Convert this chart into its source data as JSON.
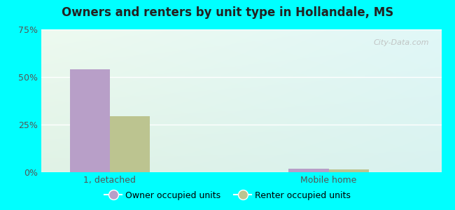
{
  "title": "Owners and renters by unit type in Hollandale, MS",
  "categories": [
    "1, detached",
    "Mobile home"
  ],
  "owner_values": [
    54.0,
    2.0
  ],
  "renter_values": [
    29.5,
    1.5
  ],
  "owner_color": "#b89fc8",
  "renter_color": "#bcc490",
  "ylim": [
    0,
    75
  ],
  "yticks": [
    0,
    25,
    50,
    75
  ],
  "ytick_labels": [
    "0%",
    "25%",
    "50%",
    "75%"
  ],
  "legend_owner": "Owner occupied units",
  "legend_renter": "Renter occupied units",
  "bar_width": 0.32,
  "outer_bg": "#00ffff",
  "watermark": "City-Data.com",
  "group_centers": [
    0.55,
    2.3
  ],
  "xlim": [
    0,
    3.2
  ]
}
